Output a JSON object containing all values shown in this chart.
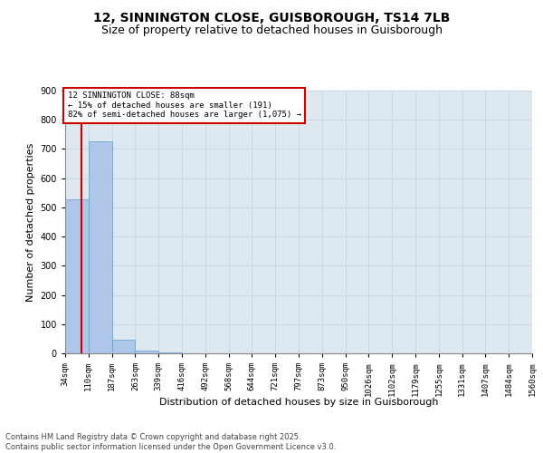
{
  "title": "12, SINNINGTON CLOSE, GUISBOROUGH, TS14 7LB",
  "subtitle": "Size of property relative to detached houses in Guisborough",
  "xlabel": "Distribution of detached houses by size in Guisborough",
  "ylabel": "Number of detached properties",
  "bin_edges": [
    34,
    110,
    187,
    263,
    339,
    416,
    492,
    568,
    644,
    721,
    797,
    873,
    950,
    1026,
    1102,
    1179,
    1255,
    1331,
    1407,
    1484,
    1560
  ],
  "bar_heights": [
    527,
    725,
    47,
    8,
    2,
    0,
    0,
    0,
    0,
    0,
    0,
    0,
    0,
    0,
    0,
    0,
    0,
    0,
    0,
    0
  ],
  "bar_color": "#aec6e8",
  "bar_edge_color": "#5a9fd4",
  "vline_x": 88,
  "vline_color": "#cc0000",
  "vline_lw": 1.5,
  "ylim": [
    0,
    900
  ],
  "yticks": [
    0,
    100,
    200,
    300,
    400,
    500,
    600,
    700,
    800,
    900
  ],
  "annotation_text": "12 SINNINGTON CLOSE: 88sqm\n← 15% of detached houses are smaller (191)\n82% of semi-detached houses are larger (1,075) →",
  "annotation_box_color": "#cc0000",
  "grid_color": "#c8d8e8",
  "background_color": "#dde8f0",
  "footer_line1": "Contains HM Land Registry data © Crown copyright and database right 2025.",
  "footer_line2": "Contains public sector information licensed under the Open Government Licence v3.0.",
  "title_fontsize": 10,
  "subtitle_fontsize": 9,
  "tick_fontsize": 6.5,
  "ylabel_fontsize": 8,
  "xlabel_fontsize": 8,
  "annotation_fontsize": 6.5,
  "footer_fontsize": 6
}
